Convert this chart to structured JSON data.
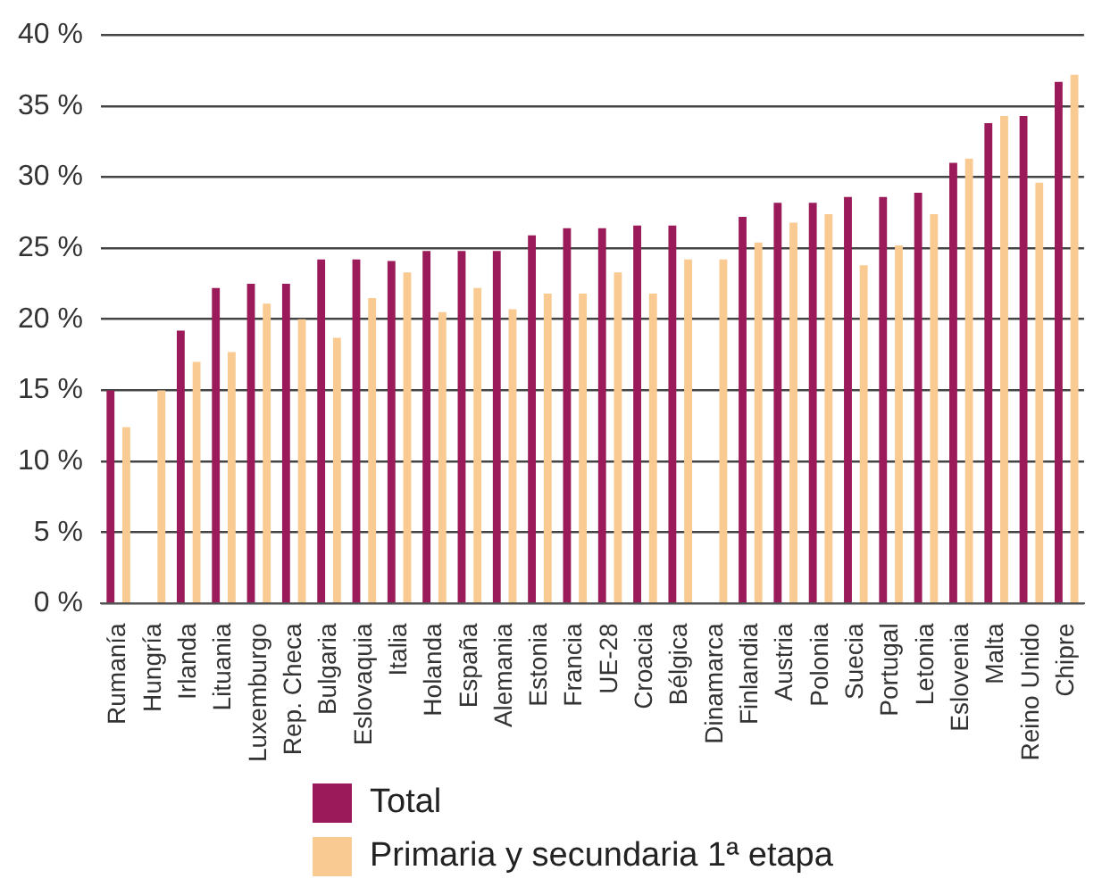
{
  "chart_data": {
    "type": "bar",
    "categories": [
      "Rumanía",
      "Hungría",
      "Irlanda",
      "Lituania",
      "Luxemburgo",
      "Rep. Checa",
      "Bulgaria",
      "Eslovaquia",
      "Italia",
      "Holanda",
      "España",
      "Alemania",
      "Estonia",
      "Francia",
      "UE-28",
      "Croacia",
      "Bélgica",
      "Dinamarca",
      "Finlandia",
      "Austria",
      "Polonia",
      "Suecia",
      "Portugal",
      "Letonia",
      "Eslovenia",
      "Malta",
      "Reino Unido",
      "Chipre"
    ],
    "series": [
      {
        "name": "Total",
        "color": "#9b1b5a",
        "values": [
          15.0,
          null,
          19.2,
          22.2,
          22.5,
          22.5,
          24.2,
          24.2,
          24.1,
          24.8,
          24.8,
          24.8,
          25.9,
          26.4,
          26.4,
          26.6,
          26.6,
          null,
          27.2,
          28.2,
          28.2,
          28.6,
          28.6,
          28.9,
          31.0,
          33.8,
          34.3,
          36.7
        ]
      },
      {
        "name": "Primaria y secundaria 1ª etapa",
        "color": "#f9cb93",
        "values": [
          12.4,
          15.0,
          17.0,
          17.7,
          21.1,
          20.0,
          18.7,
          21.5,
          23.3,
          20.5,
          22.2,
          20.7,
          21.8,
          21.8,
          23.3,
          21.8,
          24.2,
          24.2,
          25.4,
          26.8,
          27.4,
          23.8,
          25.2,
          27.4,
          31.3,
          34.3,
          29.6,
          37.2
        ]
      }
    ],
    "ylim": [
      0,
      40
    ],
    "yticks": [
      {
        "value": 0,
        "label": "0 %"
      },
      {
        "value": 5,
        "label": "5 %"
      },
      {
        "value": 10,
        "label": "10 %"
      },
      {
        "value": 15,
        "label": "15 %"
      },
      {
        "value": 20,
        "label": "20 %"
      },
      {
        "value": 25,
        "label": "25 %"
      },
      {
        "value": 30,
        "label": "30 %"
      },
      {
        "value": 35,
        "label": "35 %"
      },
      {
        "value": 40,
        "label": "40 %"
      }
    ],
    "grid": "y",
    "legend": "bottom"
  }
}
